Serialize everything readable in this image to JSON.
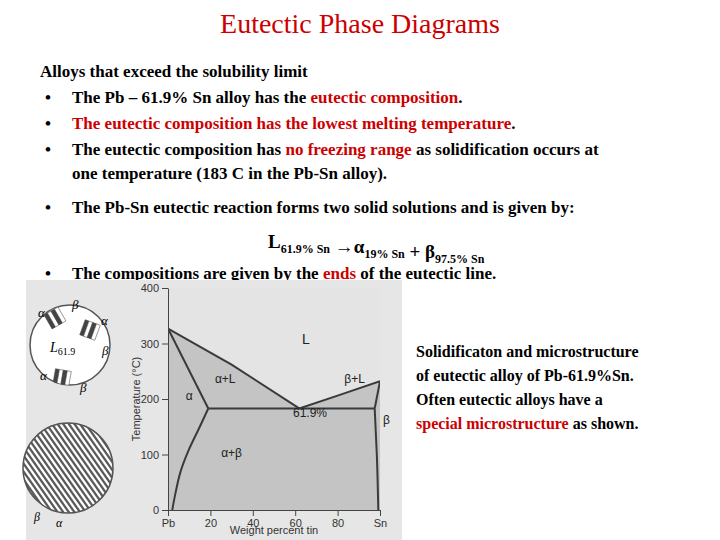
{
  "title": "Eutectic Phase Diagrams",
  "heading": "Alloys that exceed the solubility limit",
  "bullets": [
    {
      "bullet": "•",
      "lines": [
        [
          {
            "text": "The Pb – 61.9% Sn alloy has the "
          },
          {
            "text": "eutectic composition",
            "color": "#cc0000"
          },
          {
            "text": "."
          }
        ]
      ]
    },
    {
      "bullet": "•",
      "lines": [
        [
          {
            "text": "The eutectic composition has the lowest melting temperature",
            "color": "#cc0000"
          },
          {
            "text": "."
          }
        ]
      ]
    },
    {
      "bullet": "•",
      "lines": [
        [
          {
            "text": "The eutectic composition has "
          },
          {
            "text": "no freezing range",
            "color": "#cc0000"
          },
          {
            "text": " as solidification occurs at"
          }
        ],
        [
          {
            "text": "one temperature (183 C in the Pb-Sn alloy)."
          }
        ]
      ]
    },
    {
      "bullet": "•",
      "lines": [
        [
          {
            "text": "The Pb-Sn eutectic reaction forms two solid solutions and is given by:"
          }
        ]
      ]
    },
    {
      "bullet": "•",
      "lines": [
        [
          {
            "text": "The compositions are given by the "
          },
          {
            "text": "ends",
            "color": "#cc0000"
          },
          {
            "text": " of the eutectic line."
          }
        ]
      ]
    }
  ],
  "equation": [
    {
      "text": "L",
      "sub": "61.9% Sn"
    },
    {
      "text": " →"
    },
    {
      "text": "α",
      "sub": "19% Sn"
    },
    {
      "text": " + "
    },
    {
      "text": "β",
      "sub": "97.5% Sn"
    }
  ],
  "caption": [
    [
      {
        "text": "Solidificaton and microstructure"
      }
    ],
    [
      {
        "text": "of eutectic alloy of Pb-61.9%Sn."
      }
    ],
    [
      {
        "text": "Often eutectic alloys have a"
      }
    ],
    [
      {
        "text": "special microstructure",
        "color": "#cc0000"
      },
      {
        "text": " as shown."
      }
    ]
  ],
  "inset": {
    "top_labels": [
      "α",
      "β",
      "α",
      "β",
      "α",
      "β"
    ],
    "liquid_label": {
      "text": "L",
      "sub": "61.9"
    },
    "bottom_labels": [
      "β",
      "α"
    ]
  },
  "chart_data": {
    "type": "phase_diagram",
    "x_label": "Weight percent tin",
    "y_label": "Temperature (°C)",
    "xlim": [
      0,
      100
    ],
    "ylim": [
      0,
      400
    ],
    "xticks": [
      {
        "value": 0,
        "label": "Pb"
      },
      20,
      40,
      60,
      80,
      {
        "value": 100,
        "label": "Sn"
      }
    ],
    "yticks": [
      0,
      100,
      200,
      300,
      400
    ],
    "series": [
      {
        "x": [
          0,
          30,
          61.9
        ],
        "values": [
          327,
          262,
          183
        ]
      },
      {
        "x": [
          61.9,
          80,
          100
        ],
        "values": [
          183,
          206,
          232
        ]
      },
      {
        "x": [
          0,
          19
        ],
        "values": [
          327,
          183
        ]
      },
      {
        "x": [
          19,
          97.5
        ],
        "values": [
          183,
          183
        ]
      },
      {
        "x": [
          19,
          15,
          10,
          6,
          3.5,
          2
        ],
        "values": [
          183,
          150,
          110,
          70,
          30,
          0
        ]
      },
      {
        "x": [
          97.5,
          100
        ],
        "values": [
          183,
          232
        ]
      },
      {
        "x": [
          97.5,
          98.5,
          99.2
        ],
        "values": [
          183,
          100,
          0
        ]
      }
    ],
    "annotations": [
      {
        "text": "L",
        "x": 65,
        "y": 300
      },
      {
        "text": "α+L",
        "x": 27,
        "y": 228
      },
      {
        "text": "β+L",
        "x": 88,
        "y": 228
      },
      {
        "text": "α",
        "x": 10,
        "y": 198
      },
      {
        "text": "61.9%",
        "x": 67,
        "y": 168
      },
      {
        "text": "α+β",
        "x": 30,
        "y": 95
      },
      {
        "text": "β",
        "x": 103,
        "y": 155
      }
    ]
  }
}
